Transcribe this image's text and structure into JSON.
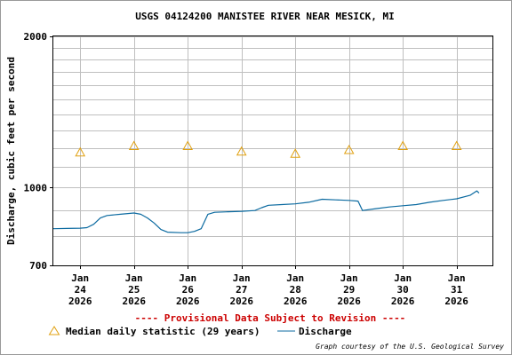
{
  "chart_data": {
    "type": "line",
    "title": "USGS 04124200 MANISTEE RIVER NEAR MESICK, MI",
    "ylabel": "Discharge, cubic feet per second",
    "xlabel": "",
    "y_scale": "log",
    "ylim": [
      700,
      2000
    ],
    "y_tick_labels": [
      "2000",
      "1000",
      "700"
    ],
    "y_minor_gridlines": [
      800,
      900,
      1100,
      1200,
      1300,
      1400,
      1500,
      1600,
      1700,
      1800,
      1900
    ],
    "x_range": [
      "2026-01-23T12:00",
      "2026-01-31T16:00"
    ],
    "x_ticks": [
      {
        "x": "2026-01-24",
        "month": "Jan",
        "day": "24",
        "year": "2026"
      },
      {
        "x": "2026-01-25",
        "month": "Jan",
        "day": "25",
        "year": "2026"
      },
      {
        "x": "2026-01-26",
        "month": "Jan",
        "day": "26",
        "year": "2026"
      },
      {
        "x": "2026-01-27",
        "month": "Jan",
        "day": "27",
        "year": "2026"
      },
      {
        "x": "2026-01-28",
        "month": "Jan",
        "day": "28",
        "year": "2026"
      },
      {
        "x": "2026-01-29",
        "month": "Jan",
        "day": "29",
        "year": "2026"
      },
      {
        "x": "2026-01-30",
        "month": "Jan",
        "day": "30",
        "year": "2026"
      },
      {
        "x": "2026-01-31",
        "month": "Jan",
        "day": "31",
        "year": "2026"
      }
    ],
    "grid": true,
    "series": [
      {
        "name": "Discharge",
        "color": "#0b6aa0",
        "points": [
          [
            "2026-01-23T12:00",
            828
          ],
          [
            "2026-01-23T18:00",
            829
          ],
          [
            "2026-01-24T00:00",
            830
          ],
          [
            "2026-01-24T03:00",
            832
          ],
          [
            "2026-01-24T06:00",
            845
          ],
          [
            "2026-01-24T09:00",
            870
          ],
          [
            "2026-01-24T12:00",
            880
          ],
          [
            "2026-01-24T18:00",
            885
          ],
          [
            "2026-01-25T00:00",
            890
          ],
          [
            "2026-01-25T03:00",
            885
          ],
          [
            "2026-01-25T06:00",
            870
          ],
          [
            "2026-01-25T09:00",
            850
          ],
          [
            "2026-01-25T12:00",
            825
          ],
          [
            "2026-01-25T15:00",
            815
          ],
          [
            "2026-01-25T21:00",
            813
          ],
          [
            "2026-01-26T00:00",
            813
          ],
          [
            "2026-01-26T03:00",
            818
          ],
          [
            "2026-01-26T06:00",
            828
          ],
          [
            "2026-01-26T09:00",
            885
          ],
          [
            "2026-01-26T12:00",
            893
          ],
          [
            "2026-01-26T18:00",
            895
          ],
          [
            "2026-01-27T00:00",
            897
          ],
          [
            "2026-01-27T06:00",
            900
          ],
          [
            "2026-01-27T09:00",
            912
          ],
          [
            "2026-01-27T12:00",
            922
          ],
          [
            "2026-01-27T18:00",
            925
          ],
          [
            "2026-01-28T00:00",
            928
          ],
          [
            "2026-01-28T06:00",
            935
          ],
          [
            "2026-01-28T12:00",
            948
          ],
          [
            "2026-01-28T18:00",
            945
          ],
          [
            "2026-01-29T00:00",
            943
          ],
          [
            "2026-01-29T04:00",
            940
          ],
          [
            "2026-01-29T06:00",
            900
          ],
          [
            "2026-01-29T12:00",
            908
          ],
          [
            "2026-01-29T18:00",
            915
          ],
          [
            "2026-01-30T00:00",
            920
          ],
          [
            "2026-01-30T06:00",
            925
          ],
          [
            "2026-01-30T12:00",
            935
          ],
          [
            "2026-01-30T18:00",
            943
          ],
          [
            "2026-01-31T00:00",
            950
          ],
          [
            "2026-01-31T06:00",
            965
          ],
          [
            "2026-01-31T09:00",
            985
          ],
          [
            "2026-01-31T10:00",
            975
          ]
        ]
      }
    ],
    "median_daily_statistic": {
      "name": "Median daily statistic (29 years)",
      "color": "#e0a010",
      "points": [
        [
          "2026-01-24T00:00",
          1175
        ],
        [
          "2026-01-25T00:00",
          1210
        ],
        [
          "2026-01-26T00:00",
          1210
        ],
        [
          "2026-01-27T00:00",
          1180
        ],
        [
          "2026-01-28T00:00",
          1168
        ],
        [
          "2026-01-29T00:00",
          1188
        ],
        [
          "2026-01-30T00:00",
          1210
        ],
        [
          "2026-01-31T00:00",
          1210
        ]
      ]
    },
    "notice": "---- Provisional Data Subject to Revision ----",
    "legend": {
      "placement": "bottom-left",
      "median_label": "Median daily statistic (29 years)",
      "discharge_label": "Discharge"
    },
    "credit": "Graph courtesy of the U.S. Geological Survey",
    "colors": {
      "notice": "#cc0000",
      "grid": "#bfbfbf",
      "axis": "#000000"
    }
  }
}
